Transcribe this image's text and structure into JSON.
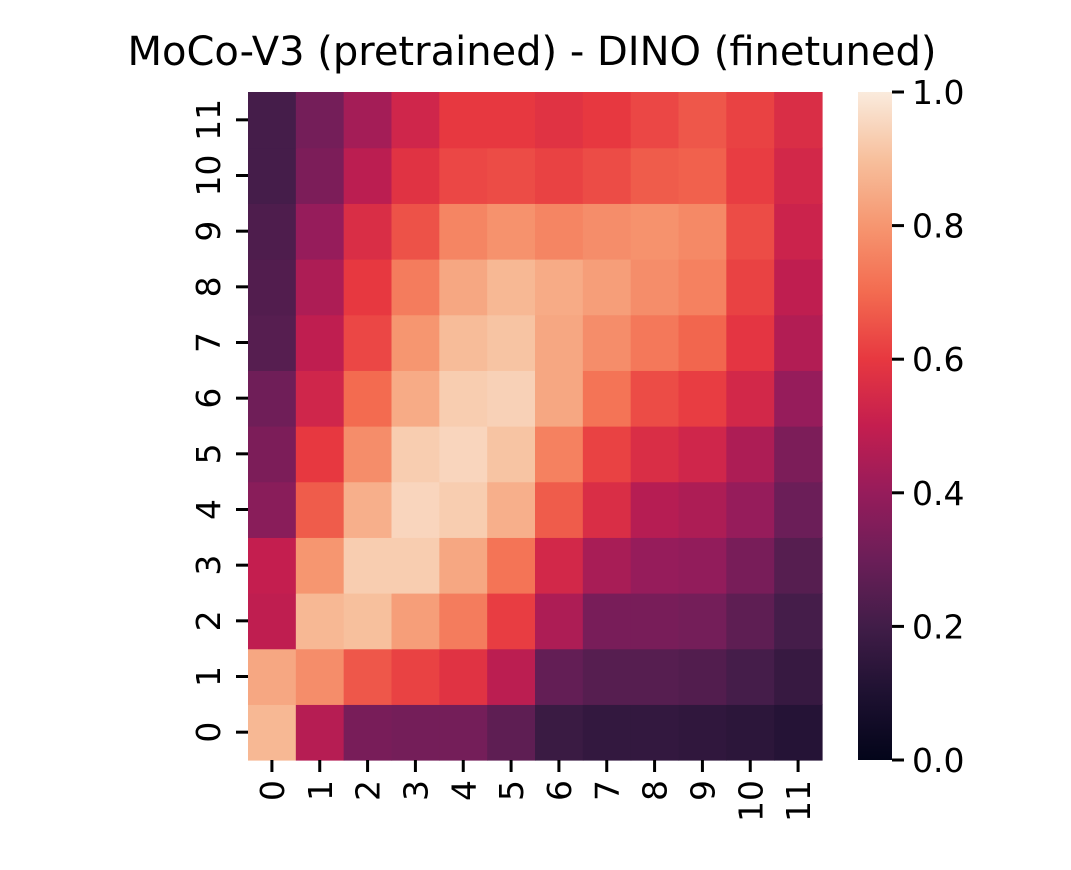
{
  "chart_data": {
    "type": "heatmap",
    "title": "MoCo-V3 (pretrained) - DINO (finetuned)",
    "xlabel": "",
    "ylabel": "",
    "x_categories": [
      "0",
      "1",
      "2",
      "3",
      "4",
      "5",
      "6",
      "7",
      "8",
      "9",
      "10",
      "11"
    ],
    "y_categories": [
      "0",
      "1",
      "2",
      "3",
      "4",
      "5",
      "6",
      "7",
      "8",
      "9",
      "10",
      "11"
    ],
    "y_order": "bottom-to-top",
    "colormap": "rocket",
    "vmin": 0.0,
    "vmax": 1.0,
    "colorbar_ticks": [
      "0.0",
      "0.2",
      "0.4",
      "0.6",
      "0.8",
      "1.0"
    ],
    "colorbar_tick_values": [
      0.0,
      0.2,
      0.4,
      0.6,
      0.8,
      1.0
    ],
    "values": [
      [
        0.88,
        0.47,
        0.33,
        0.32,
        0.32,
        0.27,
        0.18,
        0.16,
        0.16,
        0.15,
        0.14,
        0.12
      ],
      [
        0.84,
        0.78,
        0.66,
        0.62,
        0.58,
        0.48,
        0.28,
        0.25,
        0.25,
        0.24,
        0.21,
        0.17
      ],
      [
        0.49,
        0.88,
        0.9,
        0.82,
        0.74,
        0.61,
        0.45,
        0.33,
        0.33,
        0.32,
        0.27,
        0.21
      ],
      [
        0.5,
        0.8,
        0.93,
        0.93,
        0.84,
        0.72,
        0.54,
        0.44,
        0.4,
        0.39,
        0.33,
        0.25
      ],
      [
        0.37,
        0.67,
        0.86,
        0.95,
        0.93,
        0.86,
        0.67,
        0.56,
        0.47,
        0.45,
        0.4,
        0.3
      ],
      [
        0.34,
        0.6,
        0.78,
        0.93,
        0.95,
        0.91,
        0.75,
        0.62,
        0.56,
        0.53,
        0.45,
        0.34
      ],
      [
        0.31,
        0.53,
        0.7,
        0.85,
        0.93,
        0.94,
        0.84,
        0.72,
        0.64,
        0.61,
        0.54,
        0.4
      ],
      [
        0.25,
        0.49,
        0.63,
        0.8,
        0.89,
        0.91,
        0.84,
        0.78,
        0.73,
        0.69,
        0.59,
        0.46
      ],
      [
        0.24,
        0.45,
        0.6,
        0.74,
        0.84,
        0.88,
        0.85,
        0.82,
        0.78,
        0.75,
        0.62,
        0.49
      ],
      [
        0.23,
        0.4,
        0.56,
        0.65,
        0.76,
        0.79,
        0.76,
        0.78,
        0.79,
        0.77,
        0.64,
        0.52
      ],
      [
        0.21,
        0.34,
        0.48,
        0.58,
        0.63,
        0.64,
        0.62,
        0.64,
        0.67,
        0.68,
        0.61,
        0.54
      ],
      [
        0.21,
        0.32,
        0.43,
        0.53,
        0.6,
        0.6,
        0.58,
        0.6,
        0.63,
        0.66,
        0.62,
        0.56
      ]
    ]
  }
}
